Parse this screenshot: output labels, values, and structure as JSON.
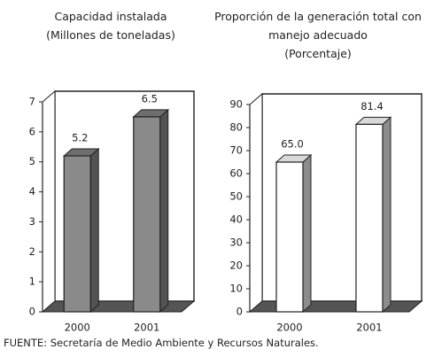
{
  "chart_data": [
    {
      "type": "bar",
      "title": "Capacidad instalada",
      "subtitle": "(Millones de toneladas)",
      "categories": [
        "2000",
        "2001"
      ],
      "values": [
        5.2,
        6.5
      ],
      "color": "#8a8a8a",
      "ylim": [
        0,
        7
      ],
      "yticks": [
        0,
        1,
        2,
        3,
        4,
        5,
        6,
        7
      ]
    },
    {
      "type": "bar",
      "title": "Proporción de la generación total con manejo adecuado",
      "subtitle": "(Porcentaje)",
      "categories": [
        "2000",
        "2001"
      ],
      "values": [
        65.0,
        81.4
      ],
      "value_labels": [
        "65.0",
        "81.4"
      ],
      "color": "#ffffff",
      "ylim": [
        0,
        90
      ],
      "yticks": [
        0,
        10,
        20,
        30,
        40,
        50,
        60,
        70,
        80,
        90
      ]
    }
  ],
  "source": "FUENTE: Secretaría de Medio Ambiente y Recursos Naturales."
}
